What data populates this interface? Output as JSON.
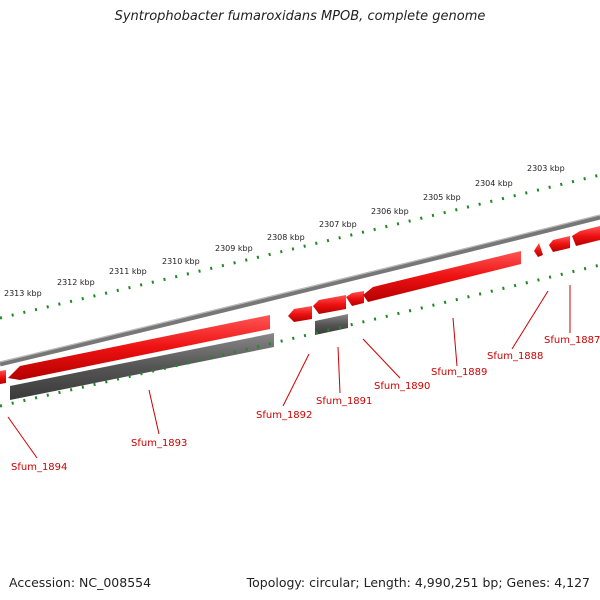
{
  "title": "Syntrophobacter fumaroxidans MPOB, complete genome",
  "footer": {
    "accession": "Accession: NC_008554",
    "stats": "Topology: circular; Length: 4,990,251 bp; Genes: 4,127"
  },
  "colors": {
    "forward_gene": "#ee1111",
    "reverse_gene": "#555555",
    "backbone": "#777777",
    "ticks": "#228822",
    "label": "#cc0000"
  },
  "kbp_labels": [
    "2303 kbp",
    "2304 kbp",
    "2305 kbp",
    "2306 kbp",
    "2307 kbp",
    "2308 kbp",
    "2309 kbp",
    "2310 kbp",
    "2311 kbp",
    "2312 kbp",
    "2313 kbp"
  ],
  "genes": [
    "Sfum_1887",
    "Sfum_1888",
    "Sfum_1889",
    "Sfum_1890",
    "Sfum_1891",
    "Sfum_1892",
    "Sfum_1893",
    "Sfum_1894"
  ]
}
